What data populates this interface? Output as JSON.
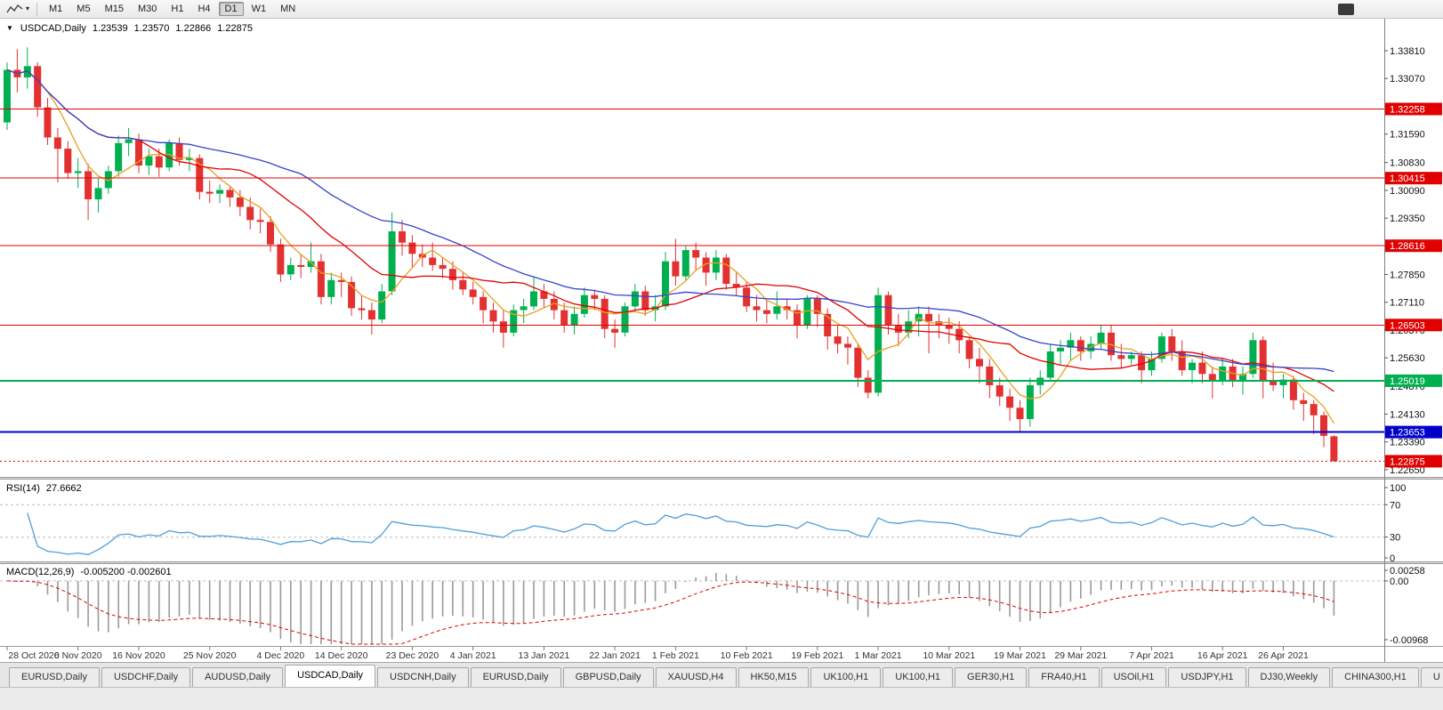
{
  "toolbar": {
    "timeframes": [
      "M1",
      "M5",
      "M15",
      "M30",
      "H1",
      "H4",
      "D1",
      "W1",
      "MN"
    ],
    "active_timeframe": "D1"
  },
  "chart_header": {
    "collapse_icon": "▼",
    "symbol": "USDCAD,Daily",
    "open": "1.23539",
    "high": "1.23570",
    "low": "1.22866",
    "close": "1.22875"
  },
  "indicators": {
    "rsi": {
      "name": "RSI(14)",
      "value": "27.6662"
    },
    "macd": {
      "name": "MACD(12,26,9)",
      "value": "-0.005200 -0.002601"
    }
  },
  "tabs": {
    "items": [
      {
        "label": "EURUSD,Daily"
      },
      {
        "label": "USDCHF,Daily"
      },
      {
        "label": "AUDUSD,Daily"
      },
      {
        "label": "USDCAD,Daily",
        "active": true
      },
      {
        "label": "USDCNH,Daily"
      },
      {
        "label": "EURUSD,Daily"
      },
      {
        "label": "GBPUSD,Daily"
      },
      {
        "label": "XAUUSD,H4"
      },
      {
        "label": "HK50,M15"
      },
      {
        "label": "UK100,H1"
      },
      {
        "label": "UK100,H1"
      },
      {
        "label": "GER30,H1"
      },
      {
        "label": "FRA40,H1"
      },
      {
        "label": "USOil,H1"
      },
      {
        "label": "USDJPY,H1"
      },
      {
        "label": "DJ30,Weekly"
      },
      {
        "label": "CHINA300,H1"
      },
      {
        "label": "U"
      }
    ],
    "scroll_left": "◄",
    "scroll_right": "►"
  },
  "chart_data": {
    "type": "candlestick",
    "symbol": "USDCAD",
    "timeframe": "Daily",
    "ohlc_header": {
      "open": 1.23539,
      "high": 1.2357,
      "low": 1.22866,
      "close": 1.22875
    },
    "ylim": [
      1.22458,
      1.34663
    ],
    "y_ticks": [
      "1.33810",
      "1.33070",
      "1.32330",
      "1.31590",
      "1.30830",
      "1.30090",
      "1.29350",
      "1.28610",
      "1.27850",
      "1.27110",
      "1.26370",
      "1.25630",
      "1.24870",
      "1.24130",
      "1.23390",
      "1.22650"
    ],
    "time_labels": [
      {
        "text": "28 Oct 2020",
        "bar": 0
      },
      {
        "text": "6 Nov 2020",
        "bar": 7
      },
      {
        "text": "16 Nov 2020",
        "bar": 13
      },
      {
        "text": "25 Nov 2020",
        "bar": 20
      },
      {
        "text": "4 Dec 2020",
        "bar": 27
      },
      {
        "text": "14 Dec 2020",
        "bar": 33
      },
      {
        "text": "23 Dec 2020",
        "bar": 40
      },
      {
        "text": "4 Jan 2021",
        "bar": 46
      },
      {
        "text": "13 Jan 2021",
        "bar": 53
      },
      {
        "text": "22 Jan 2021",
        "bar": 60
      },
      {
        "text": "1 Feb 2021",
        "bar": 66
      },
      {
        "text": "10 Feb 2021",
        "bar": 73
      },
      {
        "text": "19 Feb 2021",
        "bar": 80
      },
      {
        "text": "1 Mar 2021",
        "bar": 86
      },
      {
        "text": "10 Mar 2021",
        "bar": 93
      },
      {
        "text": "19 Mar 2021",
        "bar": 100
      },
      {
        "text": "29 Mar 2021",
        "bar": 106
      },
      {
        "text": "7 Apr 2021",
        "bar": 113
      },
      {
        "text": "16 Apr 2021",
        "bar": 120
      },
      {
        "text": "26 Apr 2021",
        "bar": 126
      }
    ],
    "levels": [
      {
        "price": 1.32258,
        "label": "1.32258",
        "color": "#e00000",
        "width": 1
      },
      {
        "price": 1.30415,
        "label": "1.30415",
        "color": "#e00000",
        "width": 1
      },
      {
        "price": 1.28616,
        "label": "1.28616",
        "color": "#e00000",
        "width": 1
      },
      {
        "price": 1.26503,
        "label": "1.26503",
        "color": "#e00000",
        "width": 1
      },
      {
        "price": 1.25019,
        "label": "1.25019",
        "color": "#00b050",
        "width": 2
      },
      {
        "price": 1.23653,
        "label": "1.23653",
        "color": "#0000cc",
        "width": 2
      }
    ],
    "current": {
      "price": 1.22875,
      "label": "1.22875",
      "color": "#e00000"
    },
    "moving_averages": [
      {
        "period": 5,
        "color": "#e8a020"
      },
      {
        "period": 14,
        "color": "#e00000"
      },
      {
        "period": 30,
        "color": "#3344cc"
      }
    ],
    "colors": {
      "up": "#00b050",
      "down": "#e33030",
      "rsi": "#4d9fd8",
      "macd_hist": "#9a9a9a",
      "macd_signal": "#e00000"
    },
    "rsi": {
      "period": 14,
      "last": 27.6662,
      "levels": [
        70,
        30
      ],
      "scale": [
        {
          "label": "100",
          "value": 100
        },
        {
          "label": "70",
          "value": 70
        },
        {
          "label": "30",
          "value": 30
        },
        {
          "label": "0",
          "value": 0
        }
      ]
    },
    "macd": {
      "fast": 12,
      "slow": 26,
      "signal": 9,
      "last": -0.0052,
      "last_signal": -0.002601,
      "ylim": [
        -0.00968,
        0.00258
      ],
      "scale": [
        {
          "label": "0.00258",
          "value": 0.00258
        },
        {
          "label": "0.00",
          "value": 0
        },
        {
          "label": "-0.00968",
          "value": -0.00968
        }
      ]
    },
    "ohlc": [
      [
        1.319,
        1.335,
        1.317,
        1.333
      ],
      [
        1.333,
        1.3385,
        1.327,
        1.331
      ],
      [
        1.331,
        1.339,
        1.328,
        1.334
      ],
      [
        1.334,
        1.335,
        1.3205,
        1.323
      ],
      [
        1.323,
        1.3255,
        1.313,
        1.315
      ],
      [
        1.315,
        1.3175,
        1.303,
        1.312
      ],
      [
        1.312,
        1.314,
        1.304,
        1.3055
      ],
      [
        1.3055,
        1.3095,
        1.3015,
        1.306
      ],
      [
        1.306,
        1.308,
        1.293,
        1.2985
      ],
      [
        1.2985,
        1.304,
        1.295,
        1.3015
      ],
      [
        1.3015,
        1.3075,
        1.3,
        1.306
      ],
      [
        1.306,
        1.3155,
        1.3045,
        1.3135
      ],
      [
        1.3135,
        1.3175,
        1.31,
        1.3145
      ],
      [
        1.3145,
        1.316,
        1.3055,
        1.3075
      ],
      [
        1.3075,
        1.312,
        1.305,
        1.31
      ],
      [
        1.31,
        1.312,
        1.3045,
        1.307
      ],
      [
        1.307,
        1.3145,
        1.306,
        1.3135
      ],
      [
        1.3135,
        1.315,
        1.3075,
        1.309
      ],
      [
        1.309,
        1.312,
        1.306,
        1.3095
      ],
      [
        1.3095,
        1.3105,
        1.2985,
        1.3005
      ],
      [
        1.3005,
        1.3035,
        1.2975,
        1.3
      ],
      [
        1.3,
        1.3025,
        1.2975,
        1.301
      ],
      [
        1.301,
        1.302,
        1.2965,
        1.299
      ],
      [
        1.299,
        1.301,
        1.294,
        1.2965
      ],
      [
        1.2965,
        1.299,
        1.2905,
        1.293
      ],
      [
        1.293,
        1.296,
        1.2895,
        1.2925
      ],
      [
        1.2925,
        1.294,
        1.2845,
        1.2865
      ],
      [
        1.2865,
        1.288,
        1.2765,
        1.2785
      ],
      [
        1.2785,
        1.283,
        1.277,
        1.281
      ],
      [
        1.281,
        1.284,
        1.2775,
        1.2805
      ],
      [
        1.2805,
        1.287,
        1.279,
        1.282
      ],
      [
        1.282,
        1.284,
        1.2705,
        1.2725
      ],
      [
        1.2725,
        1.279,
        1.2705,
        1.277
      ],
      [
        1.277,
        1.279,
        1.2725,
        1.2765
      ],
      [
        1.2765,
        1.278,
        1.2675,
        1.2695
      ],
      [
        1.2695,
        1.273,
        1.2665,
        1.269
      ],
      [
        1.269,
        1.271,
        1.2625,
        1.2665
      ],
      [
        1.2665,
        1.276,
        1.2655,
        1.274
      ],
      [
        1.274,
        1.295,
        1.273,
        1.29
      ],
      [
        1.29,
        1.293,
        1.2835,
        1.287
      ],
      [
        1.287,
        1.289,
        1.2805,
        1.284
      ],
      [
        1.284,
        1.2865,
        1.2805,
        1.283
      ],
      [
        1.283,
        1.287,
        1.2795,
        1.281
      ],
      [
        1.281,
        1.283,
        1.2775,
        1.28
      ],
      [
        1.28,
        1.282,
        1.2745,
        1.277
      ],
      [
        1.277,
        1.279,
        1.273,
        1.2745
      ],
      [
        1.2745,
        1.2765,
        1.2705,
        1.2725
      ],
      [
        1.2725,
        1.274,
        1.2655,
        1.269
      ],
      [
        1.269,
        1.271,
        1.263,
        1.266
      ],
      [
        1.266,
        1.269,
        1.259,
        1.263
      ],
      [
        1.263,
        1.2705,
        1.262,
        1.269
      ],
      [
        1.269,
        1.272,
        1.2655,
        1.27
      ],
      [
        1.27,
        1.278,
        1.269,
        1.274
      ],
      [
        1.274,
        1.276,
        1.2695,
        1.272
      ],
      [
        1.272,
        1.274,
        1.2665,
        1.269
      ],
      [
        1.269,
        1.271,
        1.263,
        1.265
      ],
      [
        1.265,
        1.27,
        1.2625,
        1.268
      ],
      [
        1.268,
        1.275,
        1.267,
        1.273
      ],
      [
        1.273,
        1.2745,
        1.269,
        1.272
      ],
      [
        1.272,
        1.273,
        1.2615,
        1.264
      ],
      [
        1.264,
        1.2665,
        1.259,
        1.263
      ],
      [
        1.263,
        1.271,
        1.262,
        1.27
      ],
      [
        1.27,
        1.276,
        1.2685,
        1.274
      ],
      [
        1.274,
        1.2755,
        1.2675,
        1.269
      ],
      [
        1.269,
        1.273,
        1.266,
        1.27
      ],
      [
        1.27,
        1.2845,
        1.269,
        1.282
      ],
      [
        1.282,
        1.288,
        1.2755,
        1.278
      ],
      [
        1.278,
        1.286,
        1.277,
        1.285
      ],
      [
        1.285,
        1.287,
        1.2795,
        1.283
      ],
      [
        1.283,
        1.2845,
        1.2755,
        1.279
      ],
      [
        1.279,
        1.285,
        1.277,
        1.283
      ],
      [
        1.283,
        1.284,
        1.2745,
        1.276
      ],
      [
        1.276,
        1.279,
        1.273,
        1.275
      ],
      [
        1.275,
        1.2765,
        1.2685,
        1.27
      ],
      [
        1.27,
        1.273,
        1.266,
        1.269
      ],
      [
        1.269,
        1.2715,
        1.2655,
        1.268
      ],
      [
        1.268,
        1.274,
        1.2665,
        1.27
      ],
      [
        1.27,
        1.272,
        1.2665,
        1.269
      ],
      [
        1.269,
        1.2705,
        1.2615,
        1.265
      ],
      [
        1.265,
        1.273,
        1.264,
        1.272
      ],
      [
        1.272,
        1.273,
        1.2645,
        1.268
      ],
      [
        1.268,
        1.2695,
        1.2585,
        1.262
      ],
      [
        1.262,
        1.265,
        1.2575,
        1.26
      ],
      [
        1.26,
        1.262,
        1.2545,
        1.259
      ],
      [
        1.259,
        1.26,
        1.2485,
        1.251
      ],
      [
        1.251,
        1.253,
        1.2455,
        1.247
      ],
      [
        1.247,
        1.275,
        1.246,
        1.273
      ],
      [
        1.273,
        1.274,
        1.2625,
        1.265
      ],
      [
        1.265,
        1.268,
        1.2595,
        1.263
      ],
      [
        1.263,
        1.269,
        1.2615,
        1.266
      ],
      [
        1.266,
        1.27,
        1.262,
        1.268
      ],
      [
        1.268,
        1.27,
        1.2575,
        1.266
      ],
      [
        1.266,
        1.268,
        1.2615,
        1.265
      ],
      [
        1.265,
        1.267,
        1.26,
        1.264
      ],
      [
        1.264,
        1.266,
        1.2575,
        1.261
      ],
      [
        1.261,
        1.262,
        1.2535,
        1.256
      ],
      [
        1.256,
        1.259,
        1.2495,
        1.254
      ],
      [
        1.254,
        1.256,
        1.2455,
        1.249
      ],
      [
        1.249,
        1.251,
        1.2435,
        1.246
      ],
      [
        1.246,
        1.248,
        1.2395,
        1.243
      ],
      [
        1.243,
        1.245,
        1.2365,
        1.24
      ],
      [
        1.24,
        1.251,
        1.238,
        1.249
      ],
      [
        1.249,
        1.253,
        1.2465,
        1.251
      ],
      [
        1.251,
        1.26,
        1.25,
        1.258
      ],
      [
        1.258,
        1.261,
        1.2545,
        1.259
      ],
      [
        1.259,
        1.263,
        1.2555,
        1.261
      ],
      [
        1.261,
        1.262,
        1.2555,
        1.258
      ],
      [
        1.258,
        1.262,
        1.256,
        1.26
      ],
      [
        1.26,
        1.265,
        1.2585,
        1.263
      ],
      [
        1.263,
        1.265,
        1.2555,
        1.257
      ],
      [
        1.257,
        1.26,
        1.2535,
        1.256
      ],
      [
        1.256,
        1.258,
        1.2545,
        1.257
      ],
      [
        1.257,
        1.258,
        1.2495,
        1.253
      ],
      [
        1.253,
        1.258,
        1.2515,
        1.256
      ],
      [
        1.256,
        1.263,
        1.255,
        1.262
      ],
      [
        1.262,
        1.264,
        1.2555,
        1.258
      ],
      [
        1.258,
        1.261,
        1.2515,
        1.253
      ],
      [
        1.253,
        1.256,
        1.2495,
        1.255
      ],
      [
        1.255,
        1.258,
        1.2495,
        1.252
      ],
      [
        1.252,
        1.254,
        1.2455,
        1.25
      ],
      [
        1.25,
        1.256,
        1.249,
        1.254
      ],
      [
        1.254,
        1.256,
        1.2485,
        1.25
      ],
      [
        1.25,
        1.254,
        1.2465,
        1.252
      ],
      [
        1.252,
        1.263,
        1.251,
        1.261
      ],
      [
        1.261,
        1.262,
        1.2455,
        1.25
      ],
      [
        1.25,
        1.255,
        1.2475,
        1.249
      ],
      [
        1.249,
        1.252,
        1.2455,
        1.2505
      ],
      [
        1.2505,
        1.2515,
        1.2425,
        1.245
      ],
      [
        1.245,
        1.247,
        1.2395,
        1.244
      ],
      [
        1.244,
        1.245,
        1.236,
        1.241
      ],
      [
        1.241,
        1.242,
        1.2325,
        1.2355
      ],
      [
        1.23539,
        1.2357,
        1.22866,
        1.22875
      ]
    ]
  }
}
